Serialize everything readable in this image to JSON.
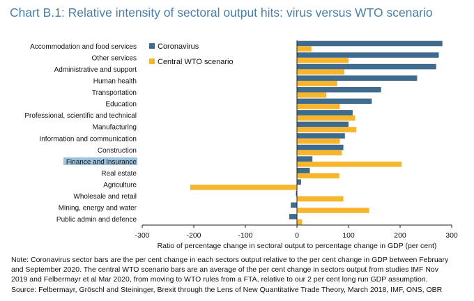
{
  "title": "Chart B.1: Relative intensity of sectoral output hits: virus versus WTO scenario",
  "chart_data": {
    "type": "bar",
    "orientation": "horizontal",
    "categories": [
      "Accommodation and food services",
      "Other services",
      "Administrative and support",
      "Human health",
      "Transportation",
      "Education",
      "Professional, scientific and technical",
      "Manufacturing",
      "Information and communication",
      "Construction",
      "Finance and insurance",
      "Real estate",
      "Agriculture",
      "Wholesale and retail",
      "Mining, energy and water",
      "Public admin and defence"
    ],
    "highlighted_category": "Finance and insurance",
    "series": [
      {
        "name": "Coronavirus",
        "color": "#3f6b8f",
        "values": [
          282,
          275,
          270,
          233,
          163,
          145,
          108,
          100,
          93,
          90,
          30,
          25,
          8,
          -2,
          -12,
          -15
        ]
      },
      {
        "name": "Central WTO scenario",
        "color": "#f7b52c",
        "values": [
          28,
          100,
          92,
          78,
          57,
          83,
          113,
          115,
          83,
          87,
          203,
          82,
          -207,
          90,
          140,
          10
        ]
      }
    ],
    "xlim": [
      -300,
      300
    ],
    "xticks": [
      "-300",
      "-200",
      "-100",
      "0",
      "100",
      "200",
      "300"
    ],
    "xlabel": "Ratio of percentage change in sectoral output to percentage change in GDP (per cent)",
    "grid": false,
    "legend_position": "top-left"
  },
  "note": [
    "Note: Coronavirus sector bars are the per cent change in each sectors output relative to the per cent change in GDP between February",
    "and September 2020. The central WTO scenario bars are an average of the per cent change in sectors output from studies IMF Nov",
    "2019 and  Felbermayr et al Mar 2020,  from moving to WTO rules from a FTA, relative to our 2 per cent long run GDP assumption.",
    "Source: Felbermayr, Gröschl and Steininger, Brexit through the Lens of New Quantitative Trade Theory, March 2018,  IMF, ONS, OBR"
  ]
}
